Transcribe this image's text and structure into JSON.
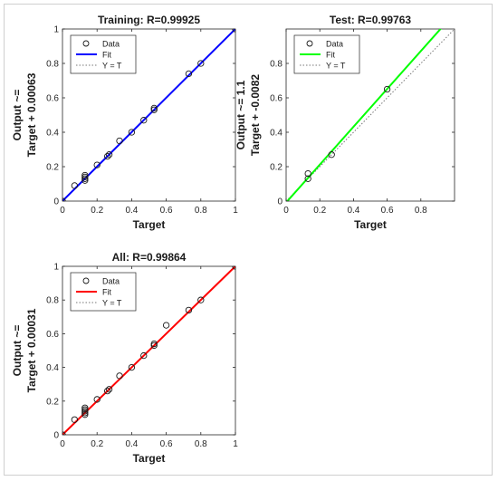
{
  "chart_data": [
    {
      "type": "scatter",
      "title": "Training: R=0.99925",
      "xlabel": "Target",
      "ylabel_main": "Output ~=",
      "ylabel_fit": "Target + 0.00063",
      "xlim": [
        0,
        1
      ],
      "ylim": [
        0,
        1
      ],
      "xticks": [
        0,
        0.2,
        0.4,
        0.6,
        0.8,
        1
      ],
      "yticks": [
        0,
        0.2,
        0.4,
        0.6,
        0.8,
        1
      ],
      "xtick_labels": [
        "0",
        "0.2",
        "0.4",
        "0.6",
        "0.8",
        "1"
      ],
      "ytick_labels": [
        "0",
        "0.2",
        "0.4",
        "0.6",
        "0.8",
        "1"
      ],
      "fit": {
        "slope": 1,
        "intercept": 0.00063,
        "color": "#0000ff"
      },
      "legend": {
        "position": "top-left",
        "entries": [
          "Data",
          "Fit",
          "Y = T"
        ]
      },
      "points": [
        [
          0,
          0
        ],
        [
          0.07,
          0.09
        ],
        [
          0.13,
          0.12
        ],
        [
          0.13,
          0.13
        ],
        [
          0.13,
          0.14
        ],
        [
          0.13,
          0.15
        ],
        [
          0.2,
          0.21
        ],
        [
          0.26,
          0.26
        ],
        [
          0.27,
          0.27
        ],
        [
          0.33,
          0.35
        ],
        [
          0.4,
          0.4
        ],
        [
          0.47,
          0.47
        ],
        [
          0.53,
          0.53
        ],
        [
          0.53,
          0.54
        ],
        [
          0.73,
          0.74
        ],
        [
          0.8,
          0.8
        ],
        [
          1,
          1
        ]
      ]
    },
    {
      "type": "scatter",
      "title": "Test: R=0.99763",
      "xlabel": "Target",
      "ylabel_main": "Output ~= 1.1",
      "ylabel_fit": "Target + -0.0082",
      "xlim": [
        0,
        1
      ],
      "ylim": [
        0,
        1
      ],
      "xticks": [
        0,
        0.2,
        0.4,
        0.6,
        0.8
      ],
      "yticks": [
        0,
        0.2,
        0.4,
        0.6,
        0.8
      ],
      "xtick_labels": [
        "0",
        "0.2",
        "0.4",
        "0.6",
        "0.8"
      ],
      "ytick_labels": [
        "0",
        "0.2",
        "0.4",
        "0.6",
        "0.8"
      ],
      "fit": {
        "slope": 1.1,
        "intercept": -0.0082,
        "color": "#00ff00"
      },
      "legend": {
        "position": "top-left",
        "entries": [
          "Data",
          "Fit",
          "Y = T"
        ]
      },
      "points": [
        [
          0.13,
          0.13
        ],
        [
          0.13,
          0.16
        ],
        [
          0.27,
          0.27
        ],
        [
          0.6,
          0.65
        ]
      ]
    },
    {
      "type": "scatter",
      "title": "All: R=0.99864",
      "xlabel": "Target",
      "ylabel_main": "Output ~=",
      "ylabel_fit": "Target + 0.00031",
      "xlim": [
        0,
        1
      ],
      "ylim": [
        0,
        1
      ],
      "xticks": [
        0,
        0.2,
        0.4,
        0.6,
        0.8,
        1
      ],
      "yticks": [
        0,
        0.2,
        0.4,
        0.6,
        0.8,
        1
      ],
      "xtick_labels": [
        "0",
        "0.2",
        "0.4",
        "0.6",
        "0.8",
        "1"
      ],
      "ytick_labels": [
        "0",
        "0.2",
        "0.4",
        "0.6",
        "0.8",
        "1"
      ],
      "fit": {
        "slope": 1,
        "intercept": 0.00031,
        "color": "#ff0000"
      },
      "legend": {
        "position": "top-left",
        "entries": [
          "Data",
          "Fit",
          "Y = T"
        ]
      },
      "points": [
        [
          0,
          0
        ],
        [
          0.07,
          0.09
        ],
        [
          0.13,
          0.12
        ],
        [
          0.13,
          0.13
        ],
        [
          0.13,
          0.14
        ],
        [
          0.13,
          0.15
        ],
        [
          0.13,
          0.16
        ],
        [
          0.2,
          0.21
        ],
        [
          0.26,
          0.26
        ],
        [
          0.27,
          0.27
        ],
        [
          0.33,
          0.35
        ],
        [
          0.4,
          0.4
        ],
        [
          0.47,
          0.47
        ],
        [
          0.53,
          0.53
        ],
        [
          0.53,
          0.54
        ],
        [
          0.6,
          0.65
        ],
        [
          0.73,
          0.74
        ],
        [
          0.8,
          0.8
        ],
        [
          1,
          1
        ]
      ]
    }
  ]
}
